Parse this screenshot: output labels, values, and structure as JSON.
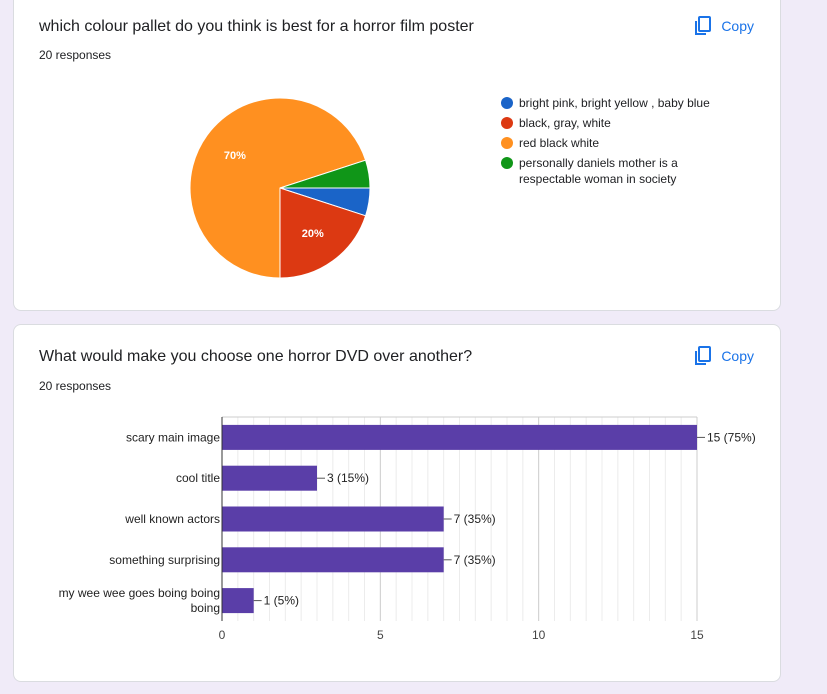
{
  "questions": [
    {
      "title": "which colour pallet do you think is best for a horror film poster",
      "responses": "20 responses",
      "copy_label": "Copy"
    },
    {
      "title": "What would make you choose one horror DVD over another?",
      "responses": "20 responses",
      "copy_label": "Copy"
    }
  ],
  "chart_data": [
    {
      "type": "pie",
      "labels": [
        "bright pink, bright yellow , baby blue",
        "black, gray, white",
        "red black white",
        "personally daniels mother is a respectable woman in society"
      ],
      "values": [
        1,
        4,
        14,
        1
      ],
      "percent_labels": [
        "",
        "20%",
        "70%",
        ""
      ],
      "colors": [
        "#1a64c8",
        "#dc3912",
        "#ff9020",
        "#109618"
      ],
      "legend_position": "right"
    },
    {
      "type": "bar",
      "orientation": "horizontal",
      "categories": [
        "scary main image",
        "cool title",
        "well known actors",
        "something surprising",
        "my wee wee goes boing boing boing"
      ],
      "category_lines": [
        [
          "scary main image"
        ],
        [
          "cool title"
        ],
        [
          "well known actors"
        ],
        [
          "something surprising"
        ],
        [
          "my wee wee goes boing boing",
          "boing"
        ]
      ],
      "values": [
        15,
        3,
        7,
        7,
        1
      ],
      "value_labels": [
        "15 (75%)",
        "3 (15%)",
        "7 (35%)",
        "7 (35%)",
        "1 (5%)"
      ],
      "xlim": [
        0,
        15
      ],
      "xticks": [
        "0",
        "5",
        "10",
        "15"
      ],
      "grid": true,
      "color": "#5a3ea8"
    }
  ]
}
